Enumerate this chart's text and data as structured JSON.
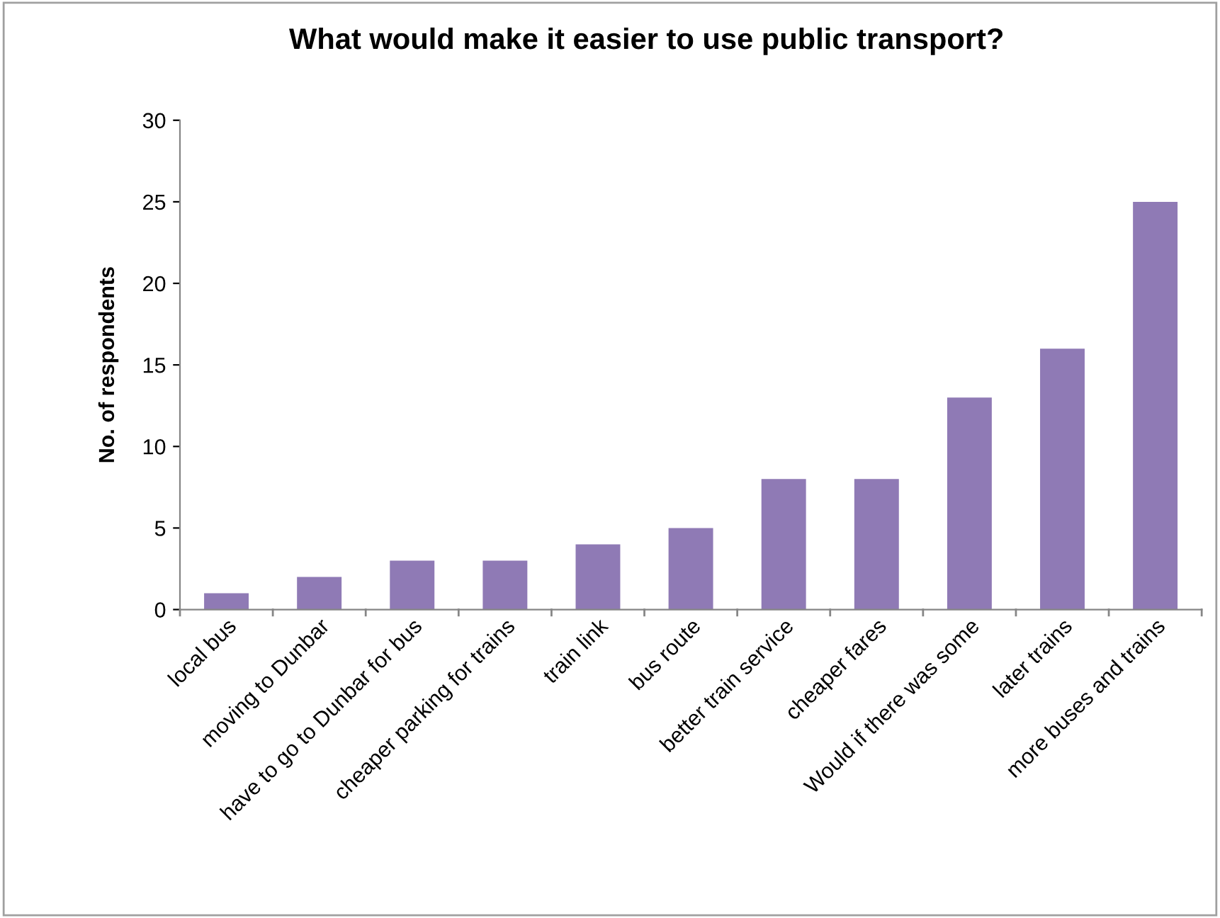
{
  "chart_data": {
    "type": "bar",
    "title": "What would make it easier to use public transport?",
    "ylabel": "No. of respondents",
    "categories": [
      "local bus",
      "moving to Dunbar",
      "have to go to Dunbar for bus",
      "cheaper parking for trains",
      "train link",
      "bus route",
      "better train service",
      "cheaper fares",
      "Would if there was some",
      "later trains",
      "more buses and trains"
    ],
    "values": [
      1,
      2,
      3,
      3,
      4,
      5,
      8,
      8,
      13,
      16,
      25
    ],
    "color": "#8f7ab5",
    "ylim": [
      0,
      30
    ],
    "yticks": [
      0,
      5,
      10,
      15,
      20,
      25,
      30
    ],
    "grid": false,
    "legend": false
  }
}
